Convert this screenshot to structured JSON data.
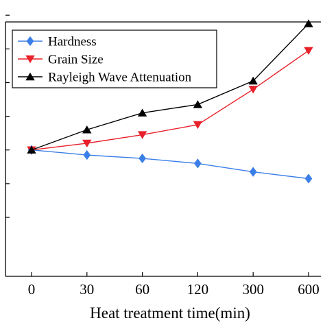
{
  "chart_data": {
    "type": "line",
    "categories": [
      "0",
      "30",
      "60",
      "120",
      "300",
      "600"
    ],
    "xlabel": "Heat treatment time(min)",
    "ylabel": "",
    "ylim": [
      0,
      1
    ],
    "grid": false,
    "legend_position": "top-left",
    "series": [
      {
        "name": "Hardness",
        "color": "#3a7ee8",
        "marker": "diamond",
        "values": [
          0.3,
          0.27,
          0.25,
          0.22,
          0.17,
          0.13
        ]
      },
      {
        "name": "Grain Size",
        "color": "#e8202a",
        "marker": "triangle-down",
        "values": [
          0.3,
          0.34,
          0.39,
          0.45,
          0.66,
          0.89
        ]
      },
      {
        "name": "Rayleigh Wave Attenuation",
        "color": "#000000",
        "marker": "triangle-up",
        "values": [
          0.3,
          0.42,
          0.52,
          0.57,
          0.71,
          1.05
        ]
      }
    ]
  }
}
